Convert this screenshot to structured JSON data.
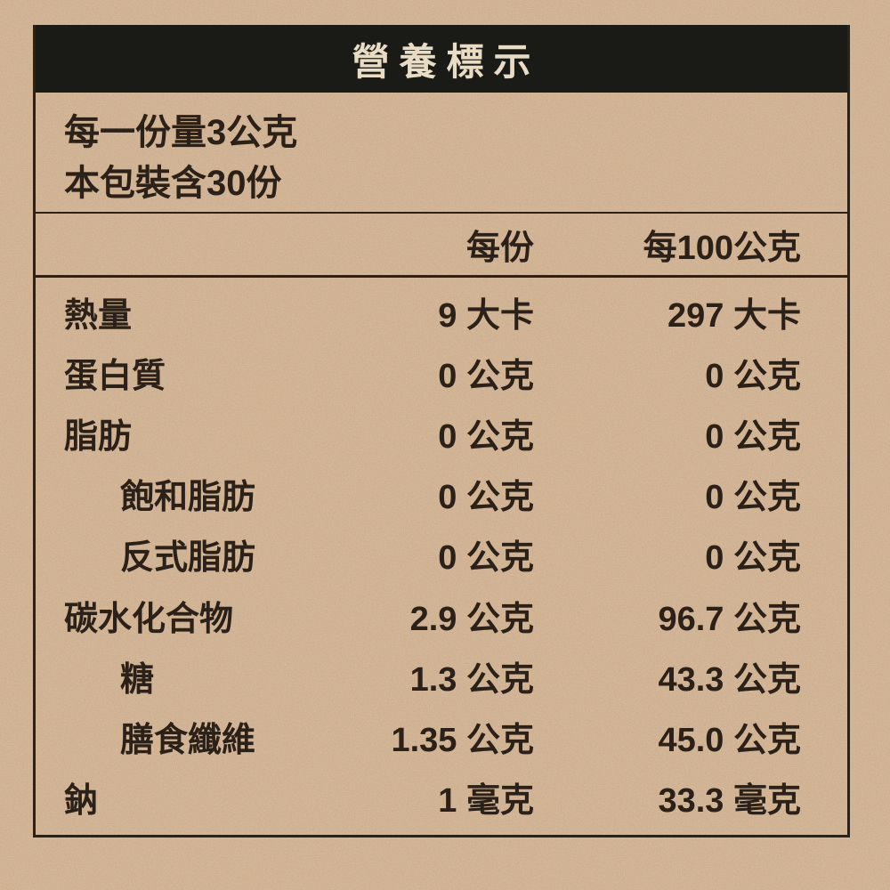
{
  "title": "營養標示",
  "serving_info": {
    "line1": "每一份量3公克",
    "line2": "本包裝含30份"
  },
  "table": {
    "columns": [
      "每份",
      "每100公克"
    ],
    "rows": [
      {
        "label": "熱量",
        "indent": false,
        "per_serving": "9 大卡",
        "per_100g": "297 大卡"
      },
      {
        "label": "蛋白質",
        "indent": false,
        "per_serving": "0 公克",
        "per_100g": "0 公克"
      },
      {
        "label": "脂肪",
        "indent": false,
        "per_serving": "0 公克",
        "per_100g": "0 公克"
      },
      {
        "label": "飽和脂肪",
        "indent": true,
        "per_serving": "0 公克",
        "per_100g": "0 公克"
      },
      {
        "label": "反式脂肪",
        "indent": true,
        "per_serving": "0 公克",
        "per_100g": "0 公克"
      },
      {
        "label": "碳水化合物",
        "indent": false,
        "per_serving": "2.9 公克",
        "per_100g": "96.7 公克"
      },
      {
        "label": "糖",
        "indent": true,
        "per_serving": "1.3 公克",
        "per_100g": "43.3 公克"
      },
      {
        "label": "膳食纖維",
        "indent": true,
        "per_serving": "1.35 公克",
        "per_100g": "45.0 公克"
      },
      {
        "label": "鈉",
        "indent": false,
        "per_serving": "1 毫克",
        "per_100g": "33.3 毫克"
      }
    ]
  },
  "colors": {
    "paper": "#c8a786",
    "title_bar_bg": "#1a1a16",
    "title_text": "#e9dcc4",
    "text": "#2b2118",
    "border": "#2b2116"
  }
}
